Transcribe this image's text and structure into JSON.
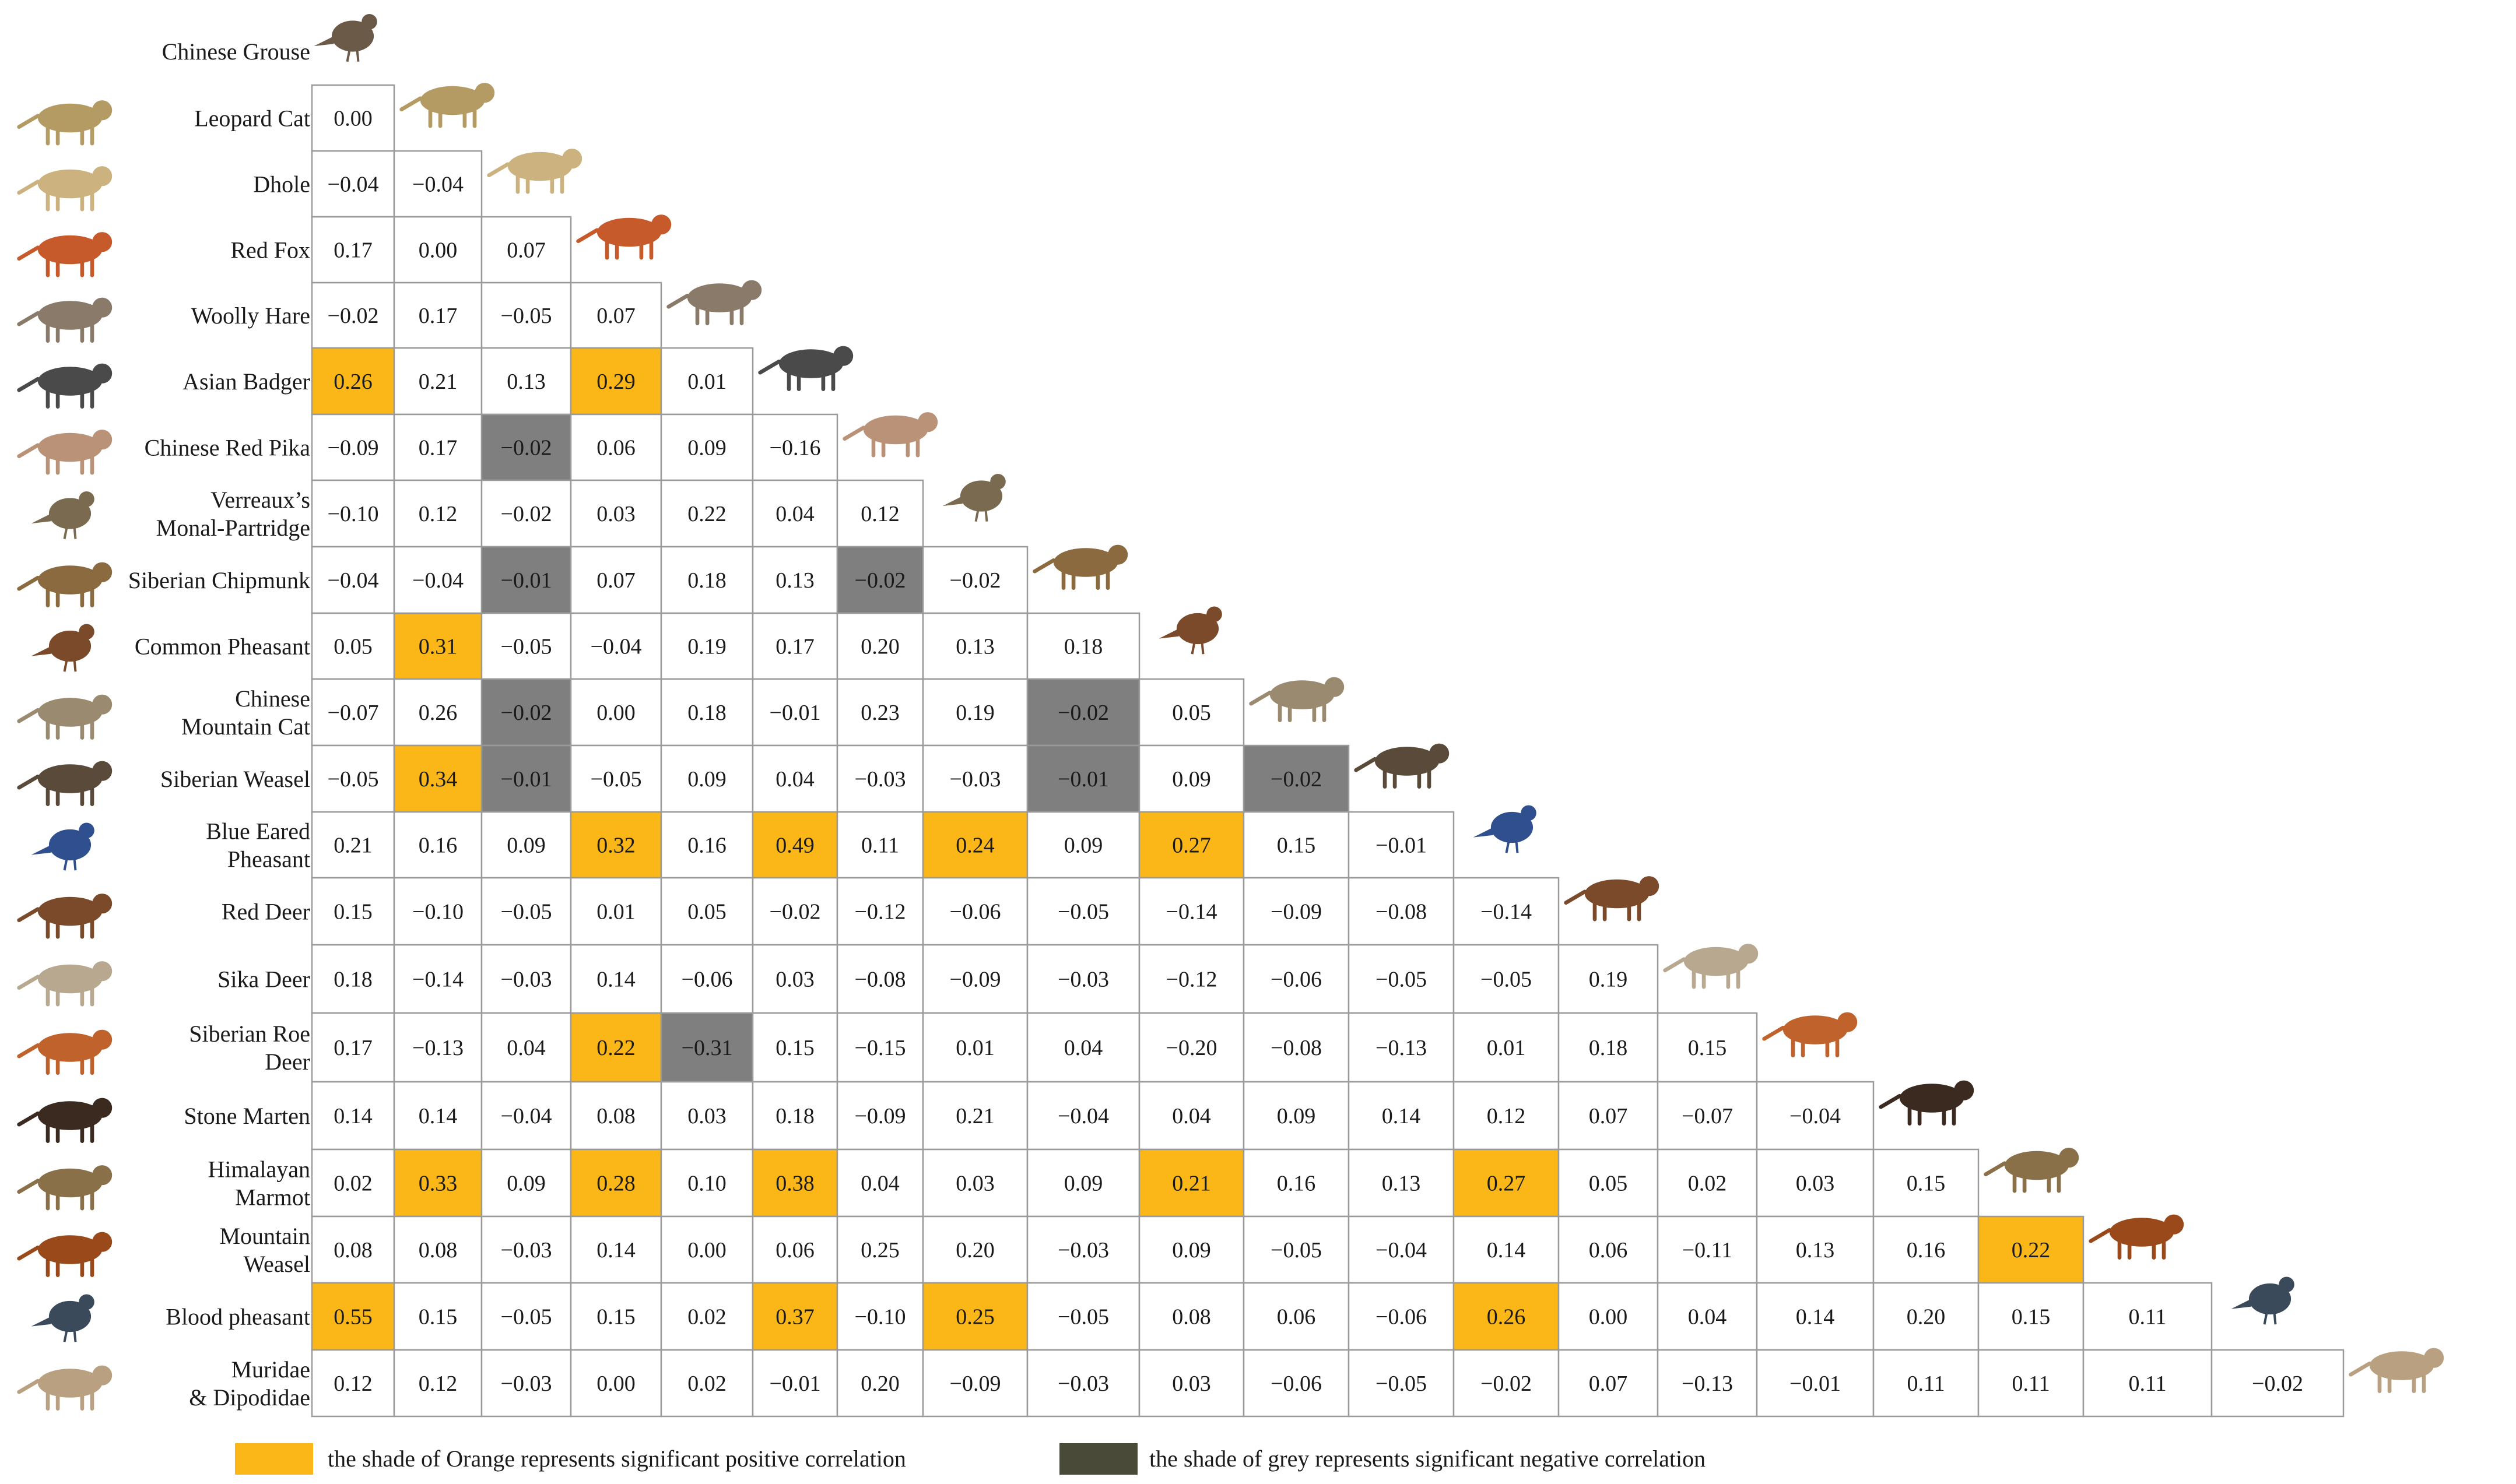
{
  "colors": {
    "positive": "#FBB717",
    "negative": "#7F7F7F",
    "legend_negative": "#4A4A38",
    "grid": "#9a9a9a",
    "text": "#1a1a1a"
  },
  "chart_data": {
    "type": "heatmap",
    "title": "",
    "species": [
      {
        "name": "Chinese Grouse",
        "label": [
          "Chinese Grouse"
        ],
        "icon": "grouse-icon"
      },
      {
        "name": "Leopard Cat",
        "label": [
          "Leopard Cat"
        ],
        "icon": "leopard-cat-icon"
      },
      {
        "name": "Dhole",
        "label": [
          "Dhole"
        ],
        "icon": "dhole-icon"
      },
      {
        "name": "Red Fox",
        "label": [
          "Red Fox"
        ],
        "icon": "red-fox-icon"
      },
      {
        "name": "Woolly Hare",
        "label": [
          "Woolly Hare"
        ],
        "icon": "hare-icon"
      },
      {
        "name": "Asian Badger",
        "label": [
          "Asian Badger"
        ],
        "icon": "badger-icon"
      },
      {
        "name": "Chinese Red Pika",
        "label": [
          "Chinese Red Pika"
        ],
        "icon": "pika-icon"
      },
      {
        "name": "Verreaux's Monal-Partridge",
        "label": [
          "Verreaux’s",
          "Monal-Partridge"
        ],
        "icon": "partridge-icon"
      },
      {
        "name": "Siberian Chipmunk",
        "label": [
          "Siberian Chipmunk"
        ],
        "icon": "chipmunk-icon"
      },
      {
        "name": "Common Pheasant",
        "label": [
          "Common Pheasant"
        ],
        "icon": "pheasant-icon"
      },
      {
        "name": "Chinese Mountain Cat",
        "label": [
          "Chinese",
          "Mountain Cat"
        ],
        "icon": "mountain-cat-icon"
      },
      {
        "name": "Siberian Weasel",
        "label": [
          "Siberian Weasel"
        ],
        "icon": "weasel-icon"
      },
      {
        "name": "Blue Eared Pheasant",
        "label": [
          "Blue Eared",
          "Pheasant"
        ],
        "icon": "blue-pheasant-icon"
      },
      {
        "name": "Red Deer",
        "label": [
          "Red Deer"
        ],
        "icon": "red-deer-icon"
      },
      {
        "name": "Sika Deer",
        "label": [
          "Sika Deer"
        ],
        "icon": "sika-deer-icon"
      },
      {
        "name": "Siberian Roe Deer",
        "label": [
          "Siberian Roe",
          "Deer"
        ],
        "icon": "roe-deer-icon"
      },
      {
        "name": "Stone Marten",
        "label": [
          "Stone Marten"
        ],
        "icon": "marten-icon"
      },
      {
        "name": "Himalayan Marmot",
        "label": [
          "Himalayan",
          "Marmot"
        ],
        "icon": "marmot-icon"
      },
      {
        "name": "Mountain Weasel",
        "label": [
          "Mountain",
          "Weasel"
        ],
        "icon": "mountain-weasel-icon"
      },
      {
        "name": "Blood pheasant",
        "label": [
          "Blood pheasant"
        ],
        "icon": "blood-pheasant-icon"
      },
      {
        "name": "Muridae & Dipodidae",
        "label": [
          "Muridae",
          "& Dipodidae"
        ],
        "icon": "rodent-icon"
      }
    ],
    "matrix": [
      [],
      [
        0.0
      ],
      [
        -0.04,
        -0.04
      ],
      [
        0.17,
        0.0,
        0.07
      ],
      [
        -0.02,
        0.17,
        -0.05,
        0.07
      ],
      [
        0.26,
        0.21,
        0.13,
        0.29,
        0.01
      ],
      [
        -0.09,
        0.17,
        -0.02,
        0.06,
        0.09,
        -0.16
      ],
      [
        -0.1,
        0.12,
        -0.02,
        0.03,
        0.22,
        0.04,
        0.12
      ],
      [
        -0.04,
        -0.04,
        -0.01,
        0.07,
        0.18,
        0.13,
        -0.02,
        -0.02
      ],
      [
        0.05,
        0.31,
        -0.05,
        -0.04,
        0.19,
        0.17,
        0.2,
        0.13,
        0.18
      ],
      [
        -0.07,
        0.26,
        -0.02,
        0.0,
        0.18,
        -0.01,
        0.23,
        0.19,
        -0.02,
        0.05
      ],
      [
        -0.05,
        0.34,
        -0.01,
        -0.05,
        0.09,
        0.04,
        -0.03,
        -0.03,
        -0.01,
        0.09,
        -0.02
      ],
      [
        0.21,
        0.16,
        0.09,
        0.32,
        0.16,
        0.49,
        0.11,
        0.24,
        0.09,
        0.27,
        0.15,
        -0.01
      ],
      [
        0.15,
        -0.1,
        -0.05,
        0.01,
        0.05,
        -0.02,
        -0.12,
        -0.06,
        -0.05,
        -0.14,
        -0.09,
        -0.08,
        -0.14
      ],
      [
        0.18,
        -0.14,
        -0.03,
        0.14,
        -0.06,
        0.03,
        -0.08,
        -0.09,
        -0.03,
        -0.12,
        -0.06,
        -0.05,
        -0.05,
        0.19
      ],
      [
        0.17,
        -0.13,
        0.04,
        0.22,
        -0.31,
        0.15,
        -0.15,
        0.01,
        0.04,
        -0.2,
        -0.08,
        -0.13,
        0.01,
        0.18,
        0.15
      ],
      [
        0.14,
        0.14,
        -0.04,
        0.08,
        0.03,
        0.18,
        -0.09,
        0.21,
        -0.04,
        0.04,
        0.09,
        0.14,
        0.12,
        0.07,
        -0.07,
        -0.04
      ],
      [
        0.02,
        0.33,
        0.09,
        0.28,
        0.1,
        0.38,
        0.04,
        0.03,
        0.09,
        0.21,
        0.16,
        0.13,
        0.27,
        0.05,
        0.02,
        0.03,
        0.15
      ],
      [
        0.08,
        0.08,
        -0.03,
        0.14,
        0.0,
        0.06,
        0.25,
        0.2,
        -0.03,
        0.09,
        -0.05,
        -0.04,
        0.14,
        0.06,
        -0.11,
        0.13,
        0.16,
        0.22
      ],
      [
        0.55,
        0.15,
        -0.05,
        0.15,
        0.02,
        0.37,
        -0.1,
        0.25,
        -0.05,
        0.08,
        0.06,
        -0.06,
        0.26,
        0.0,
        0.04,
        0.14,
        0.2,
        0.15,
        0.11
      ],
      [
        0.12,
        0.12,
        -0.03,
        0.0,
        0.02,
        -0.01,
        0.2,
        -0.09,
        -0.03,
        0.03,
        -0.06,
        -0.05,
        -0.02,
        0.07,
        -0.13,
        -0.01,
        0.11,
        0.11,
        0.11,
        -0.02
      ]
    ],
    "significance": [
      [],
      [
        "n"
      ],
      [
        "n",
        "n"
      ],
      [
        "n",
        "n",
        "n"
      ],
      [
        "n",
        "n",
        "n",
        "n"
      ],
      [
        "pos",
        "n",
        "n",
        "pos",
        "n"
      ],
      [
        "n",
        "n",
        "neg",
        "n",
        "n",
        "n"
      ],
      [
        "n",
        "n",
        "n",
        "n",
        "n",
        "n",
        "n"
      ],
      [
        "n",
        "n",
        "neg",
        "n",
        "n",
        "n",
        "neg",
        "n"
      ],
      [
        "n",
        "pos",
        "n",
        "n",
        "n",
        "n",
        "n",
        "n",
        "n"
      ],
      [
        "n",
        "n",
        "neg",
        "n",
        "n",
        "n",
        "n",
        "n",
        "neg",
        "n"
      ],
      [
        "n",
        "pos",
        "neg",
        "n",
        "n",
        "n",
        "n",
        "n",
        "neg",
        "n",
        "neg"
      ],
      [
        "n",
        "n",
        "n",
        "pos",
        "n",
        "pos",
        "n",
        "pos",
        "n",
        "pos",
        "n",
        "n"
      ],
      [
        "n",
        "n",
        "n",
        "n",
        "n",
        "n",
        "n",
        "n",
        "n",
        "n",
        "n",
        "n",
        "n"
      ],
      [
        "n",
        "n",
        "n",
        "n",
        "n",
        "n",
        "n",
        "n",
        "n",
        "n",
        "n",
        "n",
        "n",
        "n"
      ],
      [
        "n",
        "n",
        "n",
        "pos",
        "neg",
        "n",
        "n",
        "n",
        "n",
        "n",
        "n",
        "n",
        "n",
        "n",
        "n"
      ],
      [
        "n",
        "n",
        "n",
        "n",
        "n",
        "n",
        "n",
        "n",
        "n",
        "n",
        "n",
        "n",
        "n",
        "n",
        "n",
        "n"
      ],
      [
        "n",
        "pos",
        "n",
        "pos",
        "n",
        "pos",
        "n",
        "n",
        "n",
        "pos",
        "n",
        "n",
        "pos",
        "n",
        "n",
        "n",
        "n"
      ],
      [
        "n",
        "n",
        "n",
        "n",
        "n",
        "n",
        "n",
        "n",
        "n",
        "n",
        "n",
        "n",
        "n",
        "n",
        "n",
        "n",
        "n",
        "pos"
      ],
      [
        "pos",
        "n",
        "n",
        "n",
        "n",
        "pos",
        "n",
        "pos",
        "n",
        "n",
        "n",
        "n",
        "pos",
        "n",
        "n",
        "n",
        "n",
        "n",
        "n"
      ],
      [
        "n",
        "n",
        "n",
        "n",
        "n",
        "n",
        "n",
        "n",
        "n",
        "n",
        "n",
        "n",
        "n",
        "n",
        "n",
        "n",
        "n",
        "n",
        "n",
        "n"
      ]
    ],
    "legend": [
      {
        "key": "pos",
        "label": "the shade of Orange represents significant positive correlation"
      },
      {
        "key": "neg",
        "label": "the shade of grey represents significant negative correlation"
      }
    ]
  }
}
